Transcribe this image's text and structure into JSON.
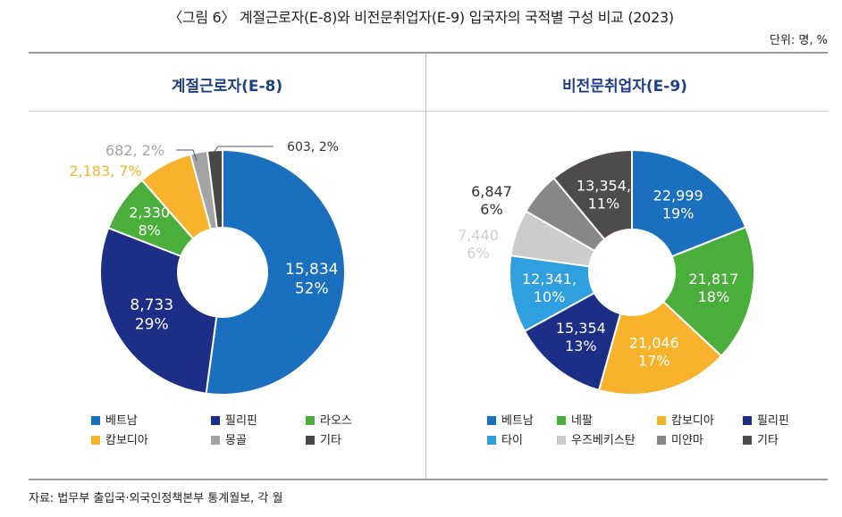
{
  "figure": {
    "title": "〈그림 6〉 계절근로자(E-8)와 비전문취업자(E-9) 입국자의 국적별 구성 비교 (2023)",
    "unit": "단위: 명, %",
    "source": "자료: 법무부 출입국·외국인정책본부 통계월보, 각 월"
  },
  "chart_data": [
    {
      "type": "pie",
      "title": "계절근로자(E-8)",
      "series": [
        {
          "name": "베트남",
          "value": 15834,
          "percent": 52,
          "label": "15,834\n52%",
          "color": "#1a6fbf"
        },
        {
          "name": "필리핀",
          "value": 8733,
          "percent": 29,
          "label": "8,733\n29%",
          "color": "#1d2e87"
        },
        {
          "name": "라오스",
          "value": 2330,
          "percent": 8,
          "label": "2,330\n8%",
          "color": "#4aae3a"
        },
        {
          "name": "캄보디아",
          "value": 2183,
          "percent": 7,
          "label": "2,183, 7%",
          "color": "#f7b32b"
        },
        {
          "name": "몽골",
          "value": 682,
          "percent": 2,
          "label": "682, 2%",
          "color": "#a3a3a3"
        },
        {
          "name": "기타",
          "value": 603,
          "percent": 2,
          "label": "603, 2%",
          "color": "#474747"
        }
      ],
      "legend": [
        "베트남",
        "필리핀",
        "라오스",
        "캄보디아",
        "몽골",
        "기타"
      ]
    },
    {
      "type": "pie",
      "title": "비전문취업자(E-9)",
      "series": [
        {
          "name": "베트남",
          "value": 22999,
          "percent": 19,
          "label": "22,999\n19%",
          "color": "#1a6fbf"
        },
        {
          "name": "네팔",
          "value": 21817,
          "percent": 18,
          "label": "21,817\n18%",
          "color": "#4aae3a"
        },
        {
          "name": "캄보디아",
          "value": 21046,
          "percent": 17,
          "label": "21,046\n17%",
          "color": "#f7b32b"
        },
        {
          "name": "필리핀",
          "value": 15354,
          "percent": 13,
          "label": "15,354\n13%",
          "color": "#1d2e87"
        },
        {
          "name": "타이",
          "value": 12341,
          "percent": 10,
          "label": "12,341,\n10%",
          "color": "#2f9fe0"
        },
        {
          "name": "우즈베키스탄",
          "value": 7440,
          "percent": 6,
          "label": "7,440\n6%",
          "color": "#cccccc"
        },
        {
          "name": "미얀마",
          "value": 6847,
          "percent": 6,
          "label": "6,847\n6%",
          "color": "#878787"
        },
        {
          "name": "기타",
          "value": 13354,
          "percent": 11,
          "label": "13,354,\n11%",
          "color": "#4d4b4b"
        }
      ],
      "legend": [
        "베트남",
        "네팔",
        "캄보디아",
        "필리핀",
        "타이",
        "우즈베키스탄",
        "미얀마",
        "기타"
      ]
    }
  ]
}
